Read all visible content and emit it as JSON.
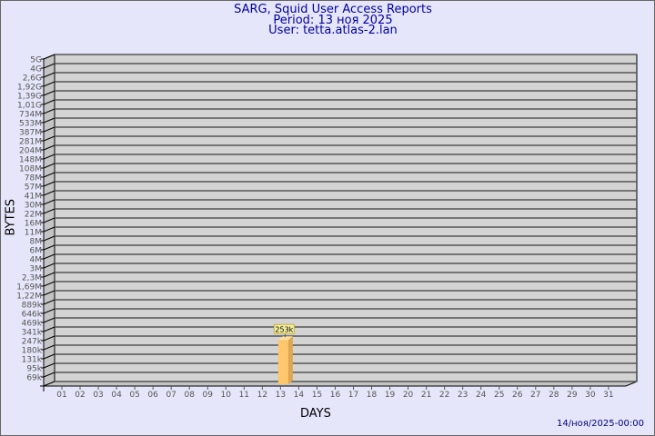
{
  "header": {
    "title": "SARG, Squid User Access Reports",
    "period": "Period: 13 ноя 2025",
    "user": "User: tetta.atlas-2.lan"
  },
  "footer": {
    "timestamp": "14/ноя/2025-00:00"
  },
  "colors": {
    "background": "#e6e6fa",
    "plot": "#d3d3d3",
    "bar": "#ffc76b",
    "bar_side": "#e0a550",
    "title": "#0000a0"
  },
  "chart_data": {
    "type": "bar",
    "xlabel": "DAYS",
    "ylabel": "BYTES",
    "yscale": "log",
    "grid": true,
    "categories": [
      "01",
      "02",
      "03",
      "04",
      "05",
      "06",
      "07",
      "08",
      "09",
      "10",
      "11",
      "12",
      "13",
      "14",
      "15",
      "16",
      "17",
      "18",
      "19",
      "20",
      "21",
      "22",
      "23",
      "24",
      "25",
      "26",
      "27",
      "28",
      "29",
      "30",
      "31"
    ],
    "y_tick_labels": [
      "5G",
      "4G",
      "2,6G",
      "1,92G",
      "1,39G",
      "1,01G",
      "734M",
      "533M",
      "387M",
      "281M",
      "204M",
      "148M",
      "108M",
      "78M",
      "57M",
      "41M",
      "30M",
      "22M",
      "16M",
      "11M",
      "8M",
      "6M",
      "4M",
      "3M",
      "2,3M",
      "1,69M",
      "1,22M",
      "889k",
      "646k",
      "469k",
      "341k",
      "247k",
      "180k",
      "131k",
      "95k",
      "69k"
    ],
    "y_tick_values": [
      5000000000,
      4000000000,
      2600000000,
      1920000000,
      1390000000,
      1010000000,
      734000000,
      533000000,
      387000000,
      281000000,
      204000000,
      148000000,
      108000000,
      78000000,
      57000000,
      41000000,
      30000000,
      22000000,
      16000000,
      11000000,
      8000000,
      6000000,
      4000000,
      3000000,
      2300000,
      1690000,
      1220000,
      889000,
      646000,
      469000,
      341000,
      247000,
      180000,
      131000,
      95000,
      69000
    ],
    "values": [
      null,
      null,
      null,
      null,
      null,
      null,
      null,
      null,
      null,
      null,
      null,
      null,
      253000,
      null,
      null,
      null,
      null,
      null,
      null,
      null,
      null,
      null,
      null,
      null,
      null,
      null,
      null,
      null,
      null,
      null,
      null
    ],
    "data_labels": {
      "13": "253k"
    }
  }
}
